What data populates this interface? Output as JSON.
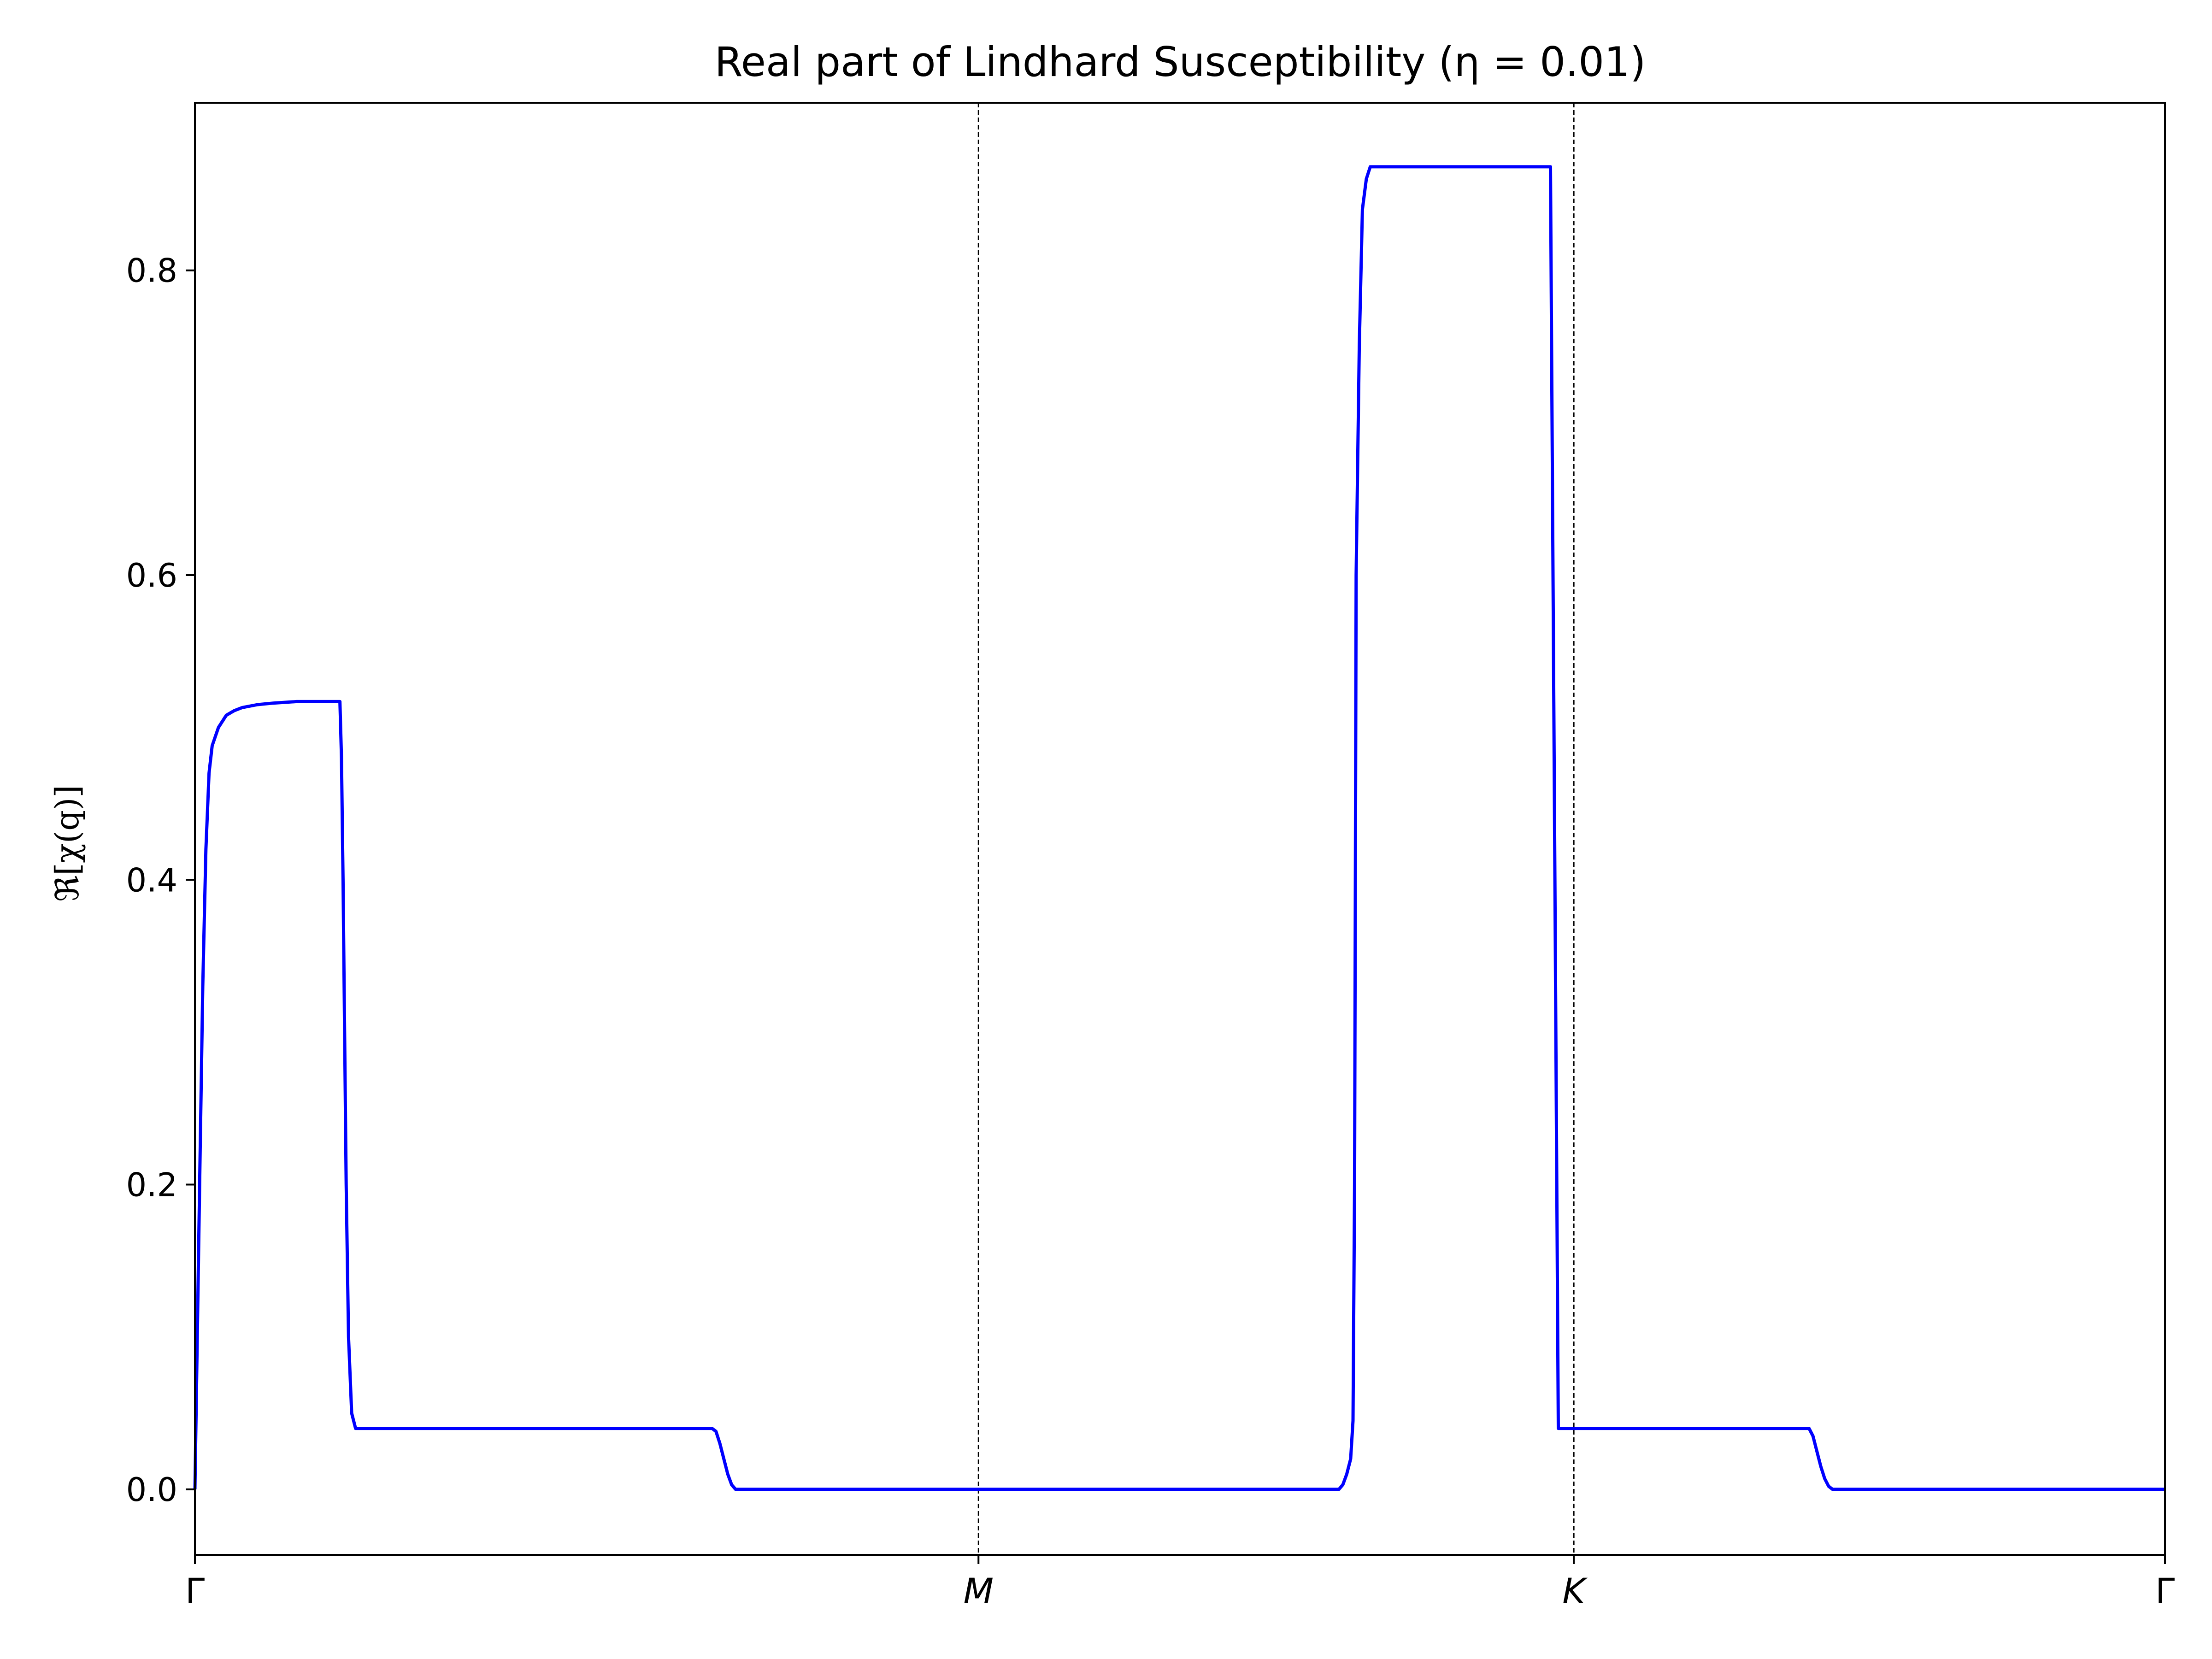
{
  "chart_data": {
    "type": "line",
    "title": "Real part of Lindhard Susceptibility (η = 0.01)",
    "ylabel": "ℜ[χ(q)]",
    "xlabel": "",
    "x_tick_labels": [
      "Γ",
      "M",
      "K",
      "Γ"
    ],
    "x_tick_positions": [
      0,
      1.0,
      1.7598,
      2.5143
    ],
    "xlim": [
      0,
      2.5143
    ],
    "ylim": [
      -0.043,
      0.91
    ],
    "y_ticks": [
      0.0,
      0.2,
      0.4,
      0.6,
      0.8
    ],
    "y_tick_labels": [
      "0.0",
      "0.2",
      "0.4",
      "0.6",
      "0.8"
    ],
    "grid": false,
    "vertical_reference_lines": [
      1.0,
      1.7598
    ],
    "colors": {
      "series": "#0000ff",
      "reference_lines": "#000000"
    },
    "series": [
      {
        "x": [
          0.0,
          0.003,
          0.006,
          0.01,
          0.014,
          0.018,
          0.022,
          0.03,
          0.04,
          0.05,
          0.06,
          0.08,
          0.1,
          0.13,
          0.16,
          0.185,
          0.187,
          0.189,
          0.191,
          0.193,
          0.196,
          0.2,
          0.205,
          0.66,
          0.665,
          0.67,
          0.675,
          0.68,
          0.685,
          0.69,
          1.0,
          1.46,
          1.465,
          1.47,
          1.475,
          1.478,
          1.48,
          1.482,
          1.486,
          1.49,
          1.495,
          1.5,
          1.54,
          1.58,
          1.61,
          1.7,
          1.72,
          1.73,
          1.74,
          1.8,
          2.06,
          2.065,
          2.07,
          2.075,
          2.08,
          2.085,
          2.09,
          2.5143
        ],
        "y": [
          0.0,
          0.1,
          0.2,
          0.33,
          0.42,
          0.47,
          0.488,
          0.5,
          0.508,
          0.511,
          0.513,
          0.515,
          0.516,
          0.517,
          0.517,
          0.517,
          0.48,
          0.4,
          0.3,
          0.2,
          0.1,
          0.05,
          0.04,
          0.04,
          0.038,
          0.03,
          0.02,
          0.01,
          0.003,
          0.0,
          0.0,
          0.0,
          0.003,
          0.01,
          0.02,
          0.045,
          0.2,
          0.6,
          0.75,
          0.84,
          0.86,
          0.868,
          0.868,
          0.868,
          0.868,
          0.868,
          0.868,
          0.868,
          0.04,
          0.04,
          0.04,
          0.035,
          0.025,
          0.015,
          0.007,
          0.002,
          0.0,
          0.0
        ]
      }
    ]
  }
}
